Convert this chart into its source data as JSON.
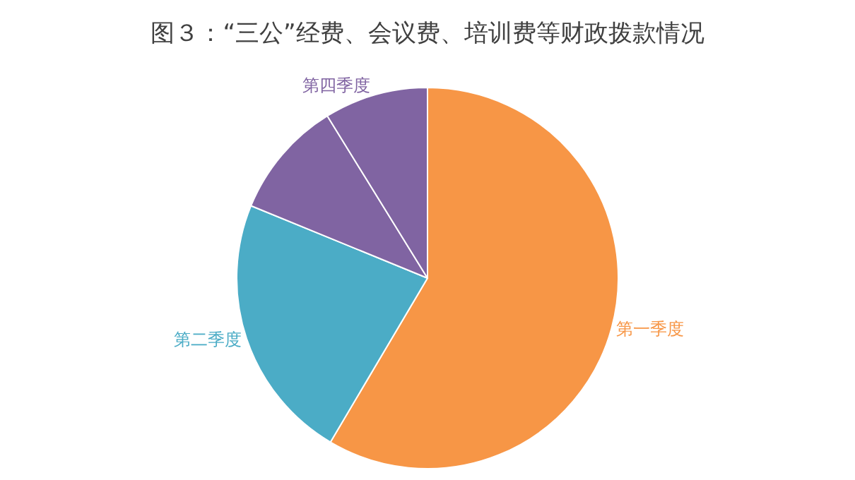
{
  "chart_data": {
    "type": "pie",
    "title": "图３：“三公”经费、会议费、培训费等财政拨款情况",
    "categories": [
      "第一季度",
      "第二季度",
      null,
      "第四季度"
    ],
    "values": [
      58.5,
      22.7,
      10,
      8.8
    ],
    "colors": [
      "#f79646",
      "#4bacc6",
      "#8064a2",
      "#8064a2"
    ],
    "legend": false
  }
}
